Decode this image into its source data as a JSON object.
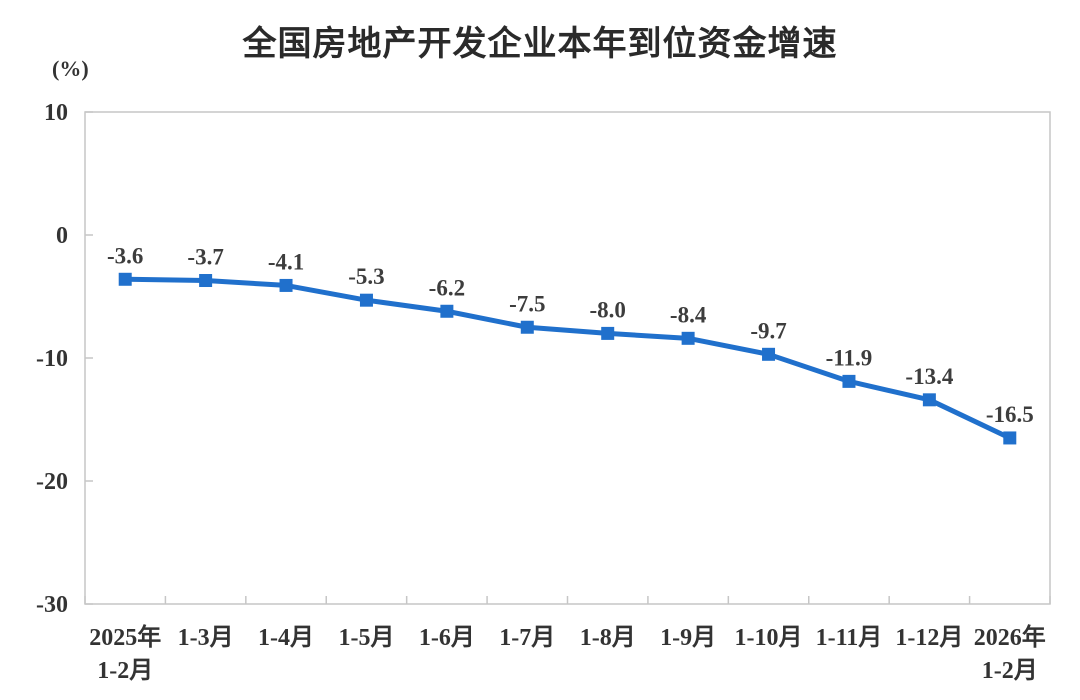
{
  "header": {
    "title": "全国房地产开发企业本年到位资金增速",
    "unit_label": "(%)"
  },
  "chart_data": {
    "type": "line",
    "title": "全国房地产开发企业本年到位资金增速",
    "ylabel": "(%)",
    "xlabel": "",
    "categories": [
      "2025年\n1-2月",
      "1-3月",
      "1-4月",
      "1-5月",
      "1-6月",
      "1-7月",
      "1-8月",
      "1-9月",
      "1-10月",
      "1-11月",
      "1-12月",
      "2026年\n1-2月"
    ],
    "values": [
      -3.6,
      -3.7,
      -4.1,
      -5.3,
      -6.2,
      -7.5,
      -8.0,
      -8.4,
      -9.7,
      -11.9,
      -13.4,
      -16.5
    ],
    "data_labels": [
      "-3.6",
      "-3.7",
      "-4.1",
      "-5.3",
      "-6.2",
      "-7.5",
      "-8.0",
      "-8.4",
      "-9.7",
      "-11.9",
      "-13.4",
      "-16.5"
    ],
    "ylim": [
      -30,
      10
    ],
    "y_ticks": [
      10,
      0,
      -10,
      -20,
      -30
    ],
    "grid": false,
    "legend": false,
    "line_color": "#2070cc",
    "marker_color": "#2070cc",
    "axis_color": "#c6c6c6",
    "text_color": "#333333"
  }
}
